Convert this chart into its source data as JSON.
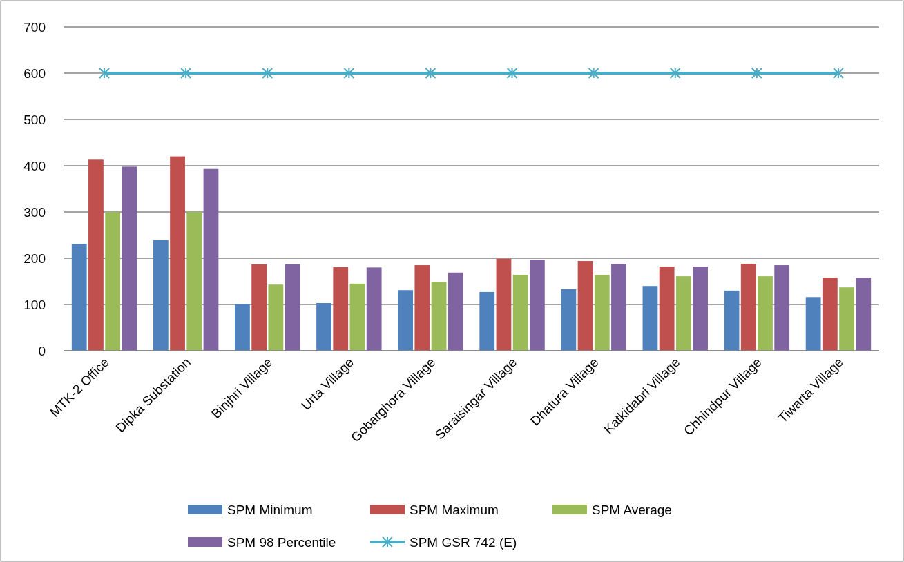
{
  "chart_data": {
    "type": "bar",
    "categories": [
      "MTK-2 Office",
      "Dipka Substation",
      "Binjhri Village",
      "Urta Village",
      "Gobarghora Village",
      "Saraisingar Village",
      "Dhatura Village",
      "Katkidabri Village",
      "Chhindpur Village",
      "Tiwarta Village"
    ],
    "series": [
      {
        "name": "SPM Minimum",
        "color": "#4f81bd",
        "values": [
          231,
          239,
          101,
          103,
          131,
          127,
          133,
          140,
          130,
          116
        ]
      },
      {
        "name": "SPM Maximum",
        "color": "#c0504d",
        "values": [
          413,
          420,
          187,
          181,
          185,
          199,
          194,
          182,
          188,
          158
        ]
      },
      {
        "name": "SPM Average",
        "color": "#9bbb59",
        "values": [
          300,
          300,
          143,
          145,
          149,
          164,
          164,
          161,
          161,
          137
        ]
      },
      {
        "name": "SPM 98 Percentile",
        "color": "#8064a2",
        "values": [
          398,
          393,
          187,
          180,
          169,
          197,
          188,
          182,
          185,
          158
        ]
      },
      {
        "name": "SPM GSR 742 (E)",
        "color": "#4bacc6",
        "type": "line",
        "marker": "cross",
        "values": [
          600,
          600,
          600,
          600,
          600,
          600,
          600,
          600,
          600,
          600
        ]
      }
    ],
    "ylim": [
      0,
      700
    ],
    "yticks": [
      0,
      100,
      200,
      300,
      400,
      500,
      600,
      700
    ],
    "grid": "y",
    "legend": "bottom"
  }
}
